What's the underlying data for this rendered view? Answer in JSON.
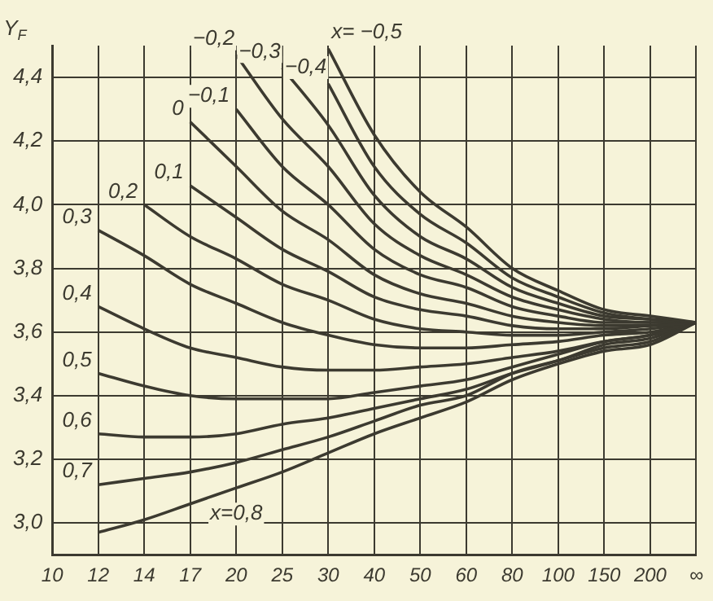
{
  "chart_data": {
    "type": "line",
    "ylabel": "Y$_{F}$",
    "categories": [
      "10",
      "12",
      "14",
      "17",
      "20",
      "25",
      "30",
      "40",
      "50",
      "60",
      "80",
      "100",
      "150",
      "200",
      "∞"
    ],
    "ylim": [
      2.9,
      4.5
    ],
    "yticks": [
      {
        "value": 3.0,
        "label": "3,0"
      },
      {
        "value": 3.2,
        "label": "3,2"
      },
      {
        "value": 3.4,
        "label": "3,4"
      },
      {
        "value": 3.6,
        "label": "3,6"
      },
      {
        "value": 3.8,
        "label": "3,8"
      },
      {
        "value": 4.0,
        "label": "4,0"
      },
      {
        "value": 4.2,
        "label": "4,2"
      },
      {
        "value": 4.4,
        "label": "4,4"
      }
    ],
    "grid": true,
    "marker": "none",
    "line_style": "solid",
    "legend": false,
    "series": [
      {
        "name": "x= −0,5",
        "color": "#3c3a30",
        "values": [
          null,
          null,
          null,
          null,
          null,
          null,
          4.49,
          4.22,
          4.04,
          3.93,
          3.8,
          3.73,
          3.67,
          3.65,
          3.63
        ]
      },
      {
        "name": "−0,4",
        "color": "#3c3a30",
        "values": [
          null,
          null,
          null,
          null,
          null,
          null,
          4.38,
          4.12,
          3.97,
          3.88,
          3.77,
          3.71,
          3.66,
          3.64,
          3.63
        ]
      },
      {
        "name": "−0,3",
        "color": "#3c3a30",
        "values": [
          null,
          null,
          null,
          null,
          null,
          4.43,
          4.25,
          4.03,
          3.9,
          3.83,
          3.74,
          3.69,
          3.65,
          3.64,
          3.63
        ]
      },
      {
        "name": "−0,2",
        "color": "#3c3a30",
        "values": [
          null,
          null,
          null,
          null,
          4.47,
          4.27,
          4.12,
          3.94,
          3.84,
          3.78,
          3.71,
          3.67,
          3.64,
          3.63,
          3.63
        ]
      },
      {
        "name": "−0,1",
        "color": "#3c3a30",
        "values": [
          null,
          null,
          null,
          null,
          4.3,
          4.12,
          4.0,
          3.86,
          3.78,
          3.74,
          3.68,
          3.65,
          3.63,
          3.63,
          3.63
        ]
      },
      {
        "name": "0",
        "color": "#3c3a30",
        "values": [
          null,
          null,
          null,
          4.26,
          4.12,
          3.98,
          3.89,
          3.78,
          3.72,
          3.69,
          3.65,
          3.63,
          3.62,
          3.62,
          3.63
        ]
      },
      {
        "name": "0,1",
        "color": "#3c3a30",
        "values": [
          null,
          null,
          null,
          4.06,
          3.96,
          3.86,
          3.79,
          3.71,
          3.67,
          3.65,
          3.62,
          3.61,
          3.61,
          3.62,
          3.63
        ]
      },
      {
        "name": "0,2",
        "color": "#3c3a30",
        "values": [
          null,
          null,
          4.0,
          3.9,
          3.83,
          3.75,
          3.7,
          3.64,
          3.61,
          3.6,
          3.59,
          3.59,
          3.6,
          3.61,
          3.63
        ]
      },
      {
        "name": "0,3",
        "color": "#3c3a30",
        "values": [
          null,
          3.92,
          3.84,
          3.75,
          3.69,
          3.63,
          3.59,
          3.56,
          3.55,
          3.55,
          3.56,
          3.57,
          3.59,
          3.6,
          3.63
        ]
      },
      {
        "name": "0,4",
        "color": "#3c3a30",
        "values": [
          null,
          3.68,
          3.61,
          3.55,
          3.52,
          3.49,
          3.48,
          3.48,
          3.49,
          3.5,
          3.52,
          3.54,
          3.57,
          3.59,
          3.63
        ]
      },
      {
        "name": "0,5",
        "color": "#3c3a30",
        "values": [
          null,
          3.47,
          3.43,
          3.4,
          3.39,
          3.39,
          3.39,
          3.41,
          3.43,
          3.45,
          3.49,
          3.53,
          3.57,
          3.59,
          3.63
        ]
      },
      {
        "name": "0,6",
        "color": "#3c3a30",
        "values": [
          null,
          3.28,
          3.27,
          3.27,
          3.28,
          3.31,
          3.33,
          3.36,
          3.39,
          3.42,
          3.47,
          3.51,
          3.56,
          3.58,
          3.63
        ]
      },
      {
        "name": "0,7",
        "color": "#3c3a30",
        "values": [
          null,
          3.12,
          3.14,
          3.16,
          3.19,
          3.23,
          3.27,
          3.32,
          3.37,
          3.4,
          3.47,
          3.51,
          3.55,
          3.57,
          3.63
        ]
      },
      {
        "name": "x=0,8",
        "color": "#3c3a30",
        "values": [
          null,
          2.97,
          3.01,
          3.06,
          3.11,
          3.16,
          3.22,
          3.28,
          3.33,
          3.38,
          3.45,
          3.5,
          3.54,
          3.56,
          3.63
        ]
      }
    ]
  }
}
